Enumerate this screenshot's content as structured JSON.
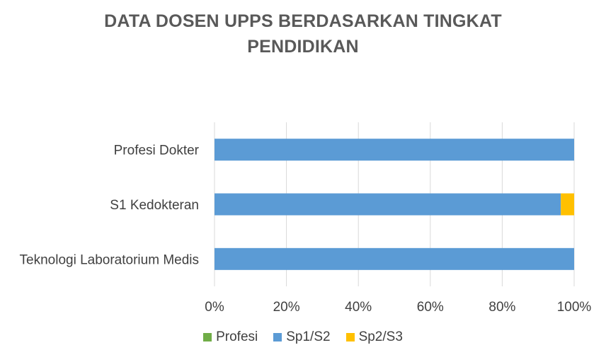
{
  "chart_data": {
    "type": "bar",
    "orientation": "horizontal",
    "stacked": "percent",
    "title": "DATA DOSEN UPPS BERDASARKAN TINGKAT PENDIDIKAN",
    "title_lines": [
      "DATA DOSEN UPPS BERDASARKAN TINGKAT",
      "PENDIDIKAN"
    ],
    "categories": [
      "Profesi Dokter",
      "S1 Kedokteran",
      "Teknologi Laboratorium Medis"
    ],
    "series": [
      {
        "name": "Profesi",
        "color": "#70AD47",
        "values": [
          0,
          0,
          0
        ]
      },
      {
        "name": "Sp1/S2",
        "color": "#5B9BD5",
        "values": [
          100,
          96.3,
          100
        ]
      },
      {
        "name": "Sp2/S3",
        "color": "#FFC000",
        "values": [
          0,
          3.7,
          0
        ]
      }
    ],
    "xlim": [
      0,
      100
    ],
    "x_ticks": [
      "0%",
      "20%",
      "40%",
      "60%",
      "80%",
      "100%"
    ],
    "grid": true,
    "legend_position": "bottom"
  }
}
